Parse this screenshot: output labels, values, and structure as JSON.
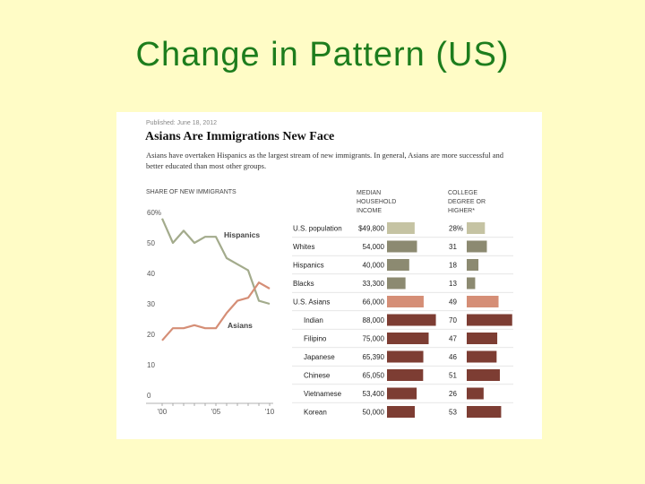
{
  "slide": {
    "title": "Change in Pattern (US)"
  },
  "figure": {
    "published": "Published: June 18, 2012",
    "headline": "Asians Are Immigrations New Face",
    "deck": "Asians have overtaken Hispanics as the largest stream of new immigrants. In general, Asians are more successful and better educated than most other groups."
  },
  "chart_data": [
    {
      "type": "line",
      "title": "SHARE OF NEW IMMIGRANTS",
      "ylim": [
        0,
        60
      ],
      "yticks": [
        "60%",
        "50",
        "40",
        "30",
        "20",
        "10",
        "0"
      ],
      "xlim": [
        2000,
        2010
      ],
      "xticks": [
        "'00",
        "'05",
        "'10"
      ],
      "grid": false,
      "x": [
        2000,
        2001,
        2002,
        2003,
        2004,
        2005,
        2006,
        2007,
        2008,
        2009,
        2010
      ],
      "series": [
        {
          "name": "Hispanics",
          "color": "#a3ab8c",
          "values": [
            58,
            50,
            54,
            50,
            52,
            52,
            45,
            43,
            41,
            31,
            30
          ]
        },
        {
          "name": "Asians",
          "color": "#d58e76",
          "values": [
            18,
            22,
            22,
            23,
            22,
            22,
            27,
            31,
            32,
            37,
            35
          ]
        }
      ]
    },
    {
      "type": "bar",
      "headers": {
        "income": "MEDIAN HOUSEHOLD INCOME",
        "college": "COLLEGE DEGREE OR HIGHER*"
      },
      "groups": [
        {
          "label": "U.S. population",
          "income_label": "$49,800",
          "income": 49800,
          "college_label": "28%",
          "college": 28,
          "color": "#c5c3a3"
        },
        {
          "label": "Whites",
          "income_label": "54,000",
          "income": 54000,
          "college_label": "31",
          "college": 31,
          "color": "#8c8a71"
        },
        {
          "label": "Hispanics",
          "income_label": "40,000",
          "income": 40000,
          "college_label": "18",
          "college": 18,
          "color": "#8c8a71"
        },
        {
          "label": "Blacks",
          "income_label": "33,300",
          "income": 33300,
          "college_label": "13",
          "college": 13,
          "color": "#8c8a71"
        },
        {
          "label": "U.S. Asians",
          "income_label": "66,000",
          "income": 66000,
          "college_label": "49",
          "college": 49,
          "color": "#d58e76"
        },
        {
          "label": "Indian",
          "income_label": "88,000",
          "income": 88000,
          "college_label": "70",
          "college": 70,
          "color": "#7d3d33"
        },
        {
          "label": "Filipino",
          "income_label": "75,000",
          "income": 75000,
          "college_label": "47",
          "college": 47,
          "color": "#7d3d33"
        },
        {
          "label": "Japanese",
          "income_label": "65,390",
          "income": 65390,
          "college_label": "46",
          "college": 46,
          "color": "#7d3d33"
        },
        {
          "label": "Chinese",
          "income_label": "65,050",
          "income": 65050,
          "college_label": "51",
          "college": 51,
          "color": "#7d3d33"
        },
        {
          "label": "Vietnamese",
          "income_label": "53,400",
          "income": 53400,
          "college_label": "26",
          "college": 26,
          "color": "#7d3d33"
        },
        {
          "label": "Korean",
          "income_label": "50,000",
          "income": 50000,
          "college_label": "53",
          "college": 53,
          "color": "#7d3d33"
        }
      ]
    }
  ]
}
